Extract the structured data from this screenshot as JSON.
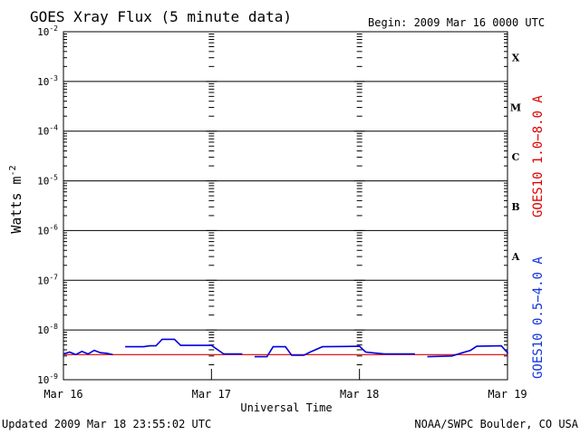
{
  "chart_data": {
    "type": "line",
    "title": "GOES Xray Flux (5 minute data)",
    "begin_label": "Begin:  2009 Mar 16 0000 UTC",
    "xlabel": "Universal Time",
    "ylabel": "Watts m",
    "ylabel_sup": "-2",
    "y_scale": "log",
    "ylim": [
      1e-09,
      0.01
    ],
    "xlim": [
      "2009-03-16 00:00",
      "2009-03-19 00:00"
    ],
    "x_ticks": [
      "Mar 16",
      "Mar 17",
      "Mar 18",
      "Mar 19"
    ],
    "y_ticks": [
      {
        "base": "10",
        "exp": "-9"
      },
      {
        "base": "10",
        "exp": "-8"
      },
      {
        "base": "10",
        "exp": "-7"
      },
      {
        "base": "10",
        "exp": "-6"
      },
      {
        "base": "10",
        "exp": "-5"
      },
      {
        "base": "10",
        "exp": "-4"
      },
      {
        "base": "10",
        "exp": "-3"
      },
      {
        "base": "10",
        "exp": "-2"
      }
    ],
    "flare_classes": [
      {
        "label": "A",
        "at": 1e-07
      },
      {
        "label": "B",
        "at": 1e-06
      },
      {
        "label": "C",
        "at": 1e-05
      },
      {
        "label": "M",
        "at": 0.0001
      },
      {
        "label": "X",
        "at": 0.001
      }
    ],
    "grid": "horizontal lines at decades; dashed vertical at day boundaries",
    "series": [
      {
        "name": "GOES10 1.0−8.0 A",
        "color": "#dd0000",
        "points": [
          [
            "2009-03-16 00:00",
            3.2e-09
          ],
          [
            "2009-03-17 00:00",
            3.2e-09
          ],
          [
            "2009-03-18 00:00",
            3.2e-09
          ],
          [
            "2009-03-19 00:00",
            3.2e-09
          ]
        ]
      },
      {
        "name": "GOES10 0.5−4.0 A",
        "color": "#0000dd",
        "segments": [
          [
            [
              "2009-03-16 00:00",
              3.3e-09
            ],
            [
              "2009-03-16 01:00",
              3.6e-09
            ],
            [
              "2009-03-16 02:00",
              3.2e-09
            ],
            [
              "2009-03-16 03:00",
              3.7e-09
            ],
            [
              "2009-03-16 04:00",
              3.3e-09
            ],
            [
              "2009-03-16 05:00",
              3.9e-09
            ],
            [
              "2009-03-16 06:00",
              3.5e-09
            ],
            [
              "2009-03-16 07:00",
              3.4e-09
            ],
            [
              "2009-03-16 08:00",
              3.2e-09
            ]
          ],
          [
            [
              "2009-03-16 10:00",
              4.6e-09
            ],
            [
              "2009-03-16 13:00",
              4.6e-09
            ],
            [
              "2009-03-16 14:00",
              4.8e-09
            ],
            [
              "2009-03-16 15:00",
              4.8e-09
            ],
            [
              "2009-03-16 16:00",
              6.5e-09
            ],
            [
              "2009-03-16 18:00",
              6.5e-09
            ],
            [
              "2009-03-16 19:00",
              4.9e-09
            ],
            [
              "2009-03-17 00:00",
              4.9e-09
            ],
            [
              "2009-03-17 02:00",
              3.3e-09
            ],
            [
              "2009-03-17 05:00",
              3.3e-09
            ]
          ],
          [
            [
              "2009-03-17 07:00",
              2.9e-09
            ],
            [
              "2009-03-17 09:00",
              2.9e-09
            ],
            [
              "2009-03-17 10:00",
              4.6e-09
            ],
            [
              "2009-03-17 12:00",
              4.6e-09
            ],
            [
              "2009-03-17 13:00",
              3.1e-09
            ],
            [
              "2009-03-17 15:00",
              3.1e-09
            ],
            [
              "2009-03-17 16:00",
              3.6e-09
            ],
            [
              "2009-03-17 18:00",
              4.6e-09
            ],
            [
              "2009-03-18 00:00",
              4.7e-09
            ],
            [
              "2009-03-18 01:00",
              3.6e-09
            ],
            [
              "2009-03-18 04:00",
              3.3e-09
            ],
            [
              "2009-03-18 09:00",
              3.3e-09
            ]
          ],
          [
            [
              "2009-03-18 11:00",
              2.9e-09
            ],
            [
              "2009-03-18 15:00",
              3e-09
            ],
            [
              "2009-03-18 16:00",
              3.3e-09
            ],
            [
              "2009-03-18 18:00",
              3.9e-09
            ],
            [
              "2009-03-18 19:00",
              4.7e-09
            ],
            [
              "2009-03-18 23:00",
              4.8e-09
            ],
            [
              "2009-03-19 00:00",
              3.5e-09
            ],
            [
              "2009-03-19 00:00",
              3.3e-09
            ]
          ]
        ]
      }
    ]
  },
  "footer": {
    "updated": "Updated 2009 Mar 18 23:55:02 UTC",
    "credit": "NOAA/SWPC Boulder, CO USA"
  }
}
